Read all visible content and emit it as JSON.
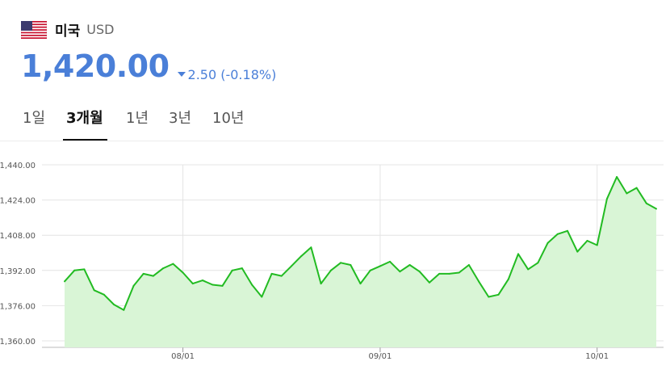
{
  "header": {
    "flag_icon": "us-flag-icon",
    "country": "미국",
    "currency": "USD"
  },
  "quote": {
    "price": "1,420.00",
    "change_direction": "down",
    "change_text": "2.50 (-0.18%)",
    "color": "#4a7fd8"
  },
  "tabs": [
    {
      "label": "1일",
      "active": false
    },
    {
      "label": "3개월",
      "active": true
    },
    {
      "label": "1년",
      "active": false
    },
    {
      "label": "3년",
      "active": false
    },
    {
      "label": "10년",
      "active": false
    }
  ],
  "chart_data": {
    "type": "area",
    "title": "",
    "xlabel": "",
    "ylabel": "",
    "ylim": [
      1360,
      1440
    ],
    "yticks": [
      "1,440.00",
      "1,424.00",
      "1,408.00",
      "1,392.00",
      "1,376.00",
      "1,360.00"
    ],
    "ytick_values": [
      1440,
      1424,
      1408,
      1392,
      1376,
      1360
    ],
    "xtick_labels": [
      "08/01",
      "09/01",
      "10/01"
    ],
    "xtick_indices": [
      12,
      32,
      54
    ],
    "grid": true,
    "line_color": "#22bb22",
    "fill_color": "#d9f5d6",
    "series": [
      {
        "values": [
          1387,
          1392,
          1392.5,
          1383,
          1381,
          1376.5,
          1374,
          1385,
          1390.5,
          1389.5,
          1393,
          1395,
          1391,
          1386,
          1387.5,
          1385.5,
          1385,
          1392,
          1393,
          1385.5,
          1380,
          1390.5,
          1389.5,
          1394,
          1398.5,
          1402.5,
          1386,
          1392,
          1395.5,
          1394.5,
          1386,
          1392,
          1394,
          1396,
          1391.5,
          1394.5,
          1391.5,
          1386.5,
          1390.5,
          1390.5,
          1391,
          1394.5,
          1387,
          1380,
          1381,
          1388,
          1399.5,
          1392.5,
          1395.5,
          1404.5,
          1408.5,
          1410,
          1400.5,
          1405.5,
          1403.5,
          1424.5,
          1434.5,
          1427,
          1429.5,
          1422.5,
          1420
        ]
      }
    ]
  }
}
